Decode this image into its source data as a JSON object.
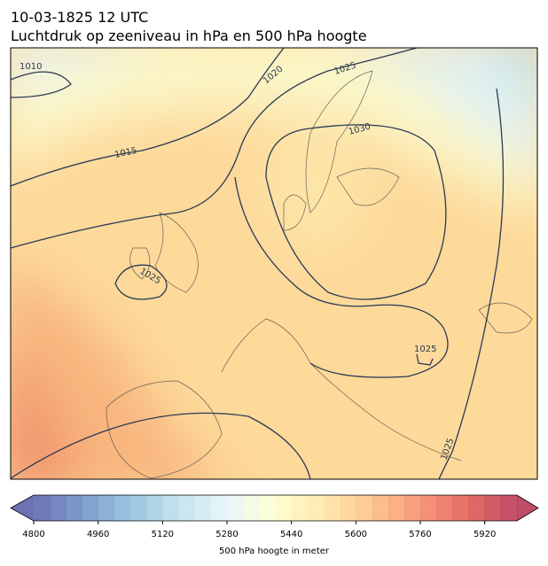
{
  "header": {
    "title": [
      "10-03-1825 12 UTC",
      "Luchtdruk op zeeniveau in hPa en 500 hPa hoogte"
    ]
  },
  "map": {
    "contour_labels": [
      "1010",
      "1015",
      "1020",
      "1025",
      "1030",
      "1025",
      "1025",
      "1025"
    ]
  },
  "colorbar": {
    "lim": [
      4800,
      6000
    ],
    "step": 40,
    "ticks": [
      4800,
      4960,
      5120,
      5280,
      5440,
      5600,
      5760,
      5920
    ],
    "label": "500 hPa hoogte in meter"
  }
}
